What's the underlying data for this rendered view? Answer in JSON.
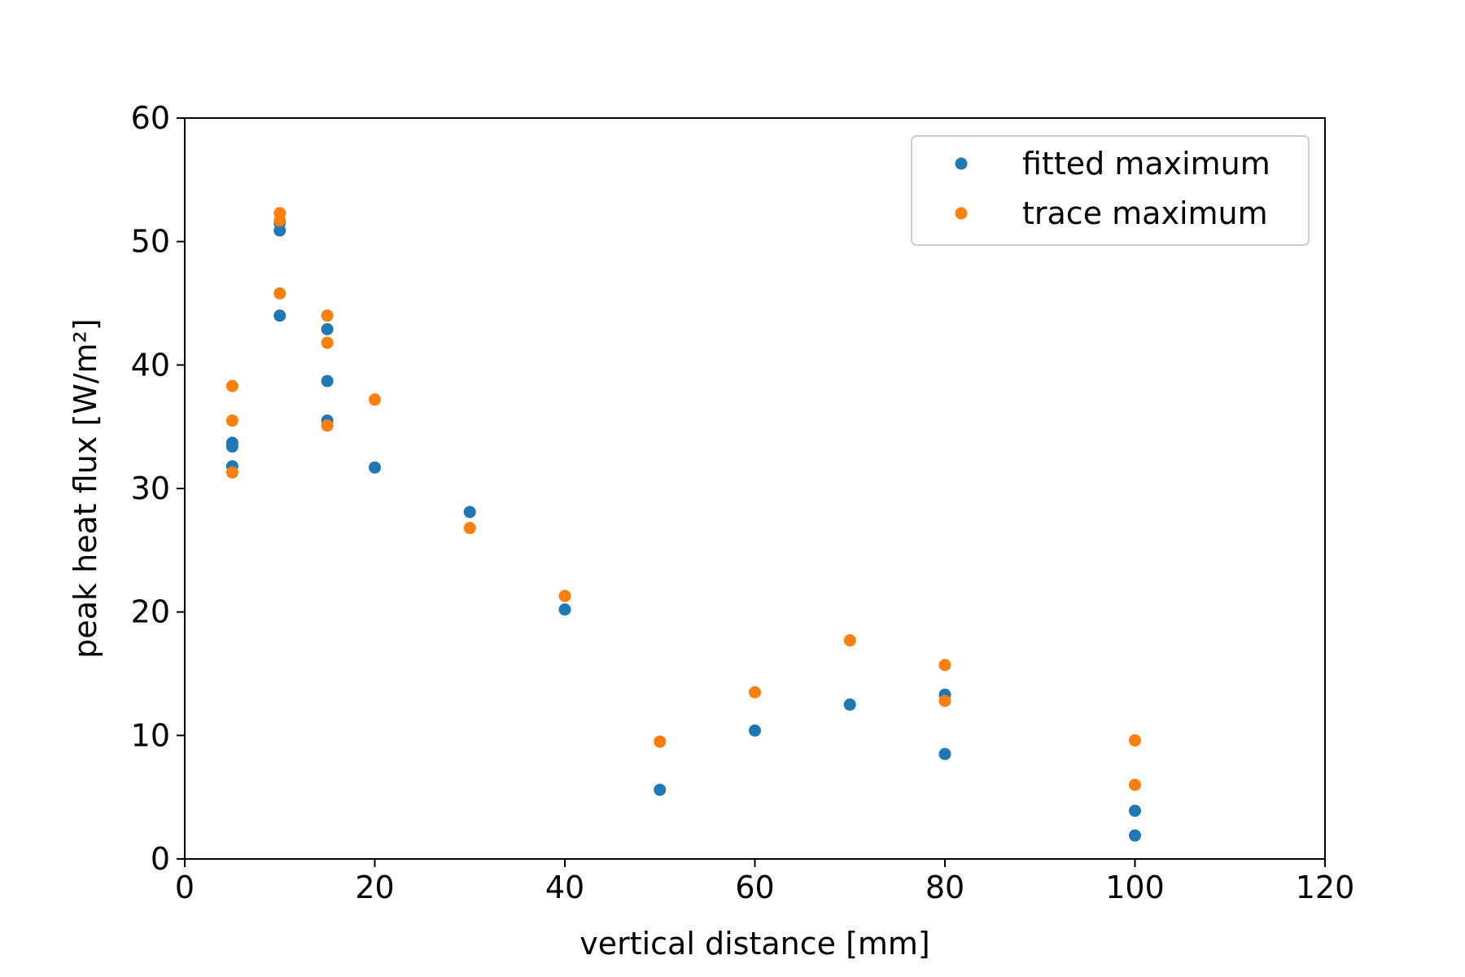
{
  "chart_data": {
    "type": "scatter",
    "title": "",
    "xlabel": "vertical distance [mm]",
    "ylabel": "peak heat flux [W/m²]",
    "xlim": [
      0,
      120
    ],
    "ylim": [
      0,
      60
    ],
    "xticks": [
      0,
      20,
      40,
      60,
      80,
      100,
      120
    ],
    "yticks": [
      0,
      10,
      20,
      30,
      40,
      50,
      60
    ],
    "grid": false,
    "legend_position": "top-right",
    "series": [
      {
        "name": "fitted maximum",
        "color": "#1f77b4",
        "points": [
          [
            5,
            33.7
          ],
          [
            5,
            33.4
          ],
          [
            5,
            31.8
          ],
          [
            10,
            51.5
          ],
          [
            10,
            50.9
          ],
          [
            10,
            44.0
          ],
          [
            15,
            42.9
          ],
          [
            15,
            38.7
          ],
          [
            15,
            35.5
          ],
          [
            20,
            31.7
          ],
          [
            30,
            28.1
          ],
          [
            40,
            20.2
          ],
          [
            50,
            5.6
          ],
          [
            60,
            10.4
          ],
          [
            70,
            12.5
          ],
          [
            80,
            13.3
          ],
          [
            80,
            8.5
          ],
          [
            100,
            3.9
          ],
          [
            100,
            1.9
          ]
        ]
      },
      {
        "name": "trace maximum",
        "color": "#ff7f0e",
        "points": [
          [
            5,
            38.3
          ],
          [
            5,
            35.5
          ],
          [
            5,
            31.3
          ],
          [
            10,
            52.3
          ],
          [
            10,
            51.7
          ],
          [
            10,
            45.8
          ],
          [
            15,
            44.0
          ],
          [
            15,
            41.8
          ],
          [
            15,
            35.1
          ],
          [
            20,
            37.2
          ],
          [
            30,
            26.8
          ],
          [
            40,
            21.3
          ],
          [
            50,
            9.5
          ],
          [
            60,
            13.5
          ],
          [
            70,
            17.7
          ],
          [
            80,
            15.7
          ],
          [
            80,
            12.8
          ],
          [
            100,
            9.6
          ],
          [
            100,
            6.0
          ]
        ]
      }
    ]
  }
}
